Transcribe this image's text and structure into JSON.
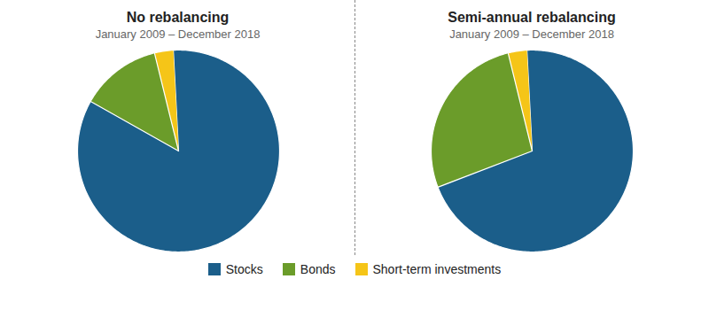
{
  "chart_data": [
    {
      "type": "pie",
      "title": "No rebalancing",
      "subtitle": "January 2009 – December 2018",
      "categories": [
        "Stocks",
        "Bonds",
        "Short-term investments"
      ],
      "values": [
        84,
        13,
        3
      ],
      "colors": [
        "#1b5e8a",
        "#6b9c2a",
        "#f5c518"
      ],
      "legend": "bottom"
    },
    {
      "type": "pie",
      "title": "Semi-annual rebalancing",
      "subtitle": "January 2009 – December 2018",
      "categories": [
        "Stocks",
        "Bonds",
        "Short-term investments"
      ],
      "values": [
        70,
        27,
        3
      ],
      "colors": [
        "#1b5e8a",
        "#6b9c2a",
        "#f5c518"
      ],
      "legend": "bottom"
    }
  ]
}
